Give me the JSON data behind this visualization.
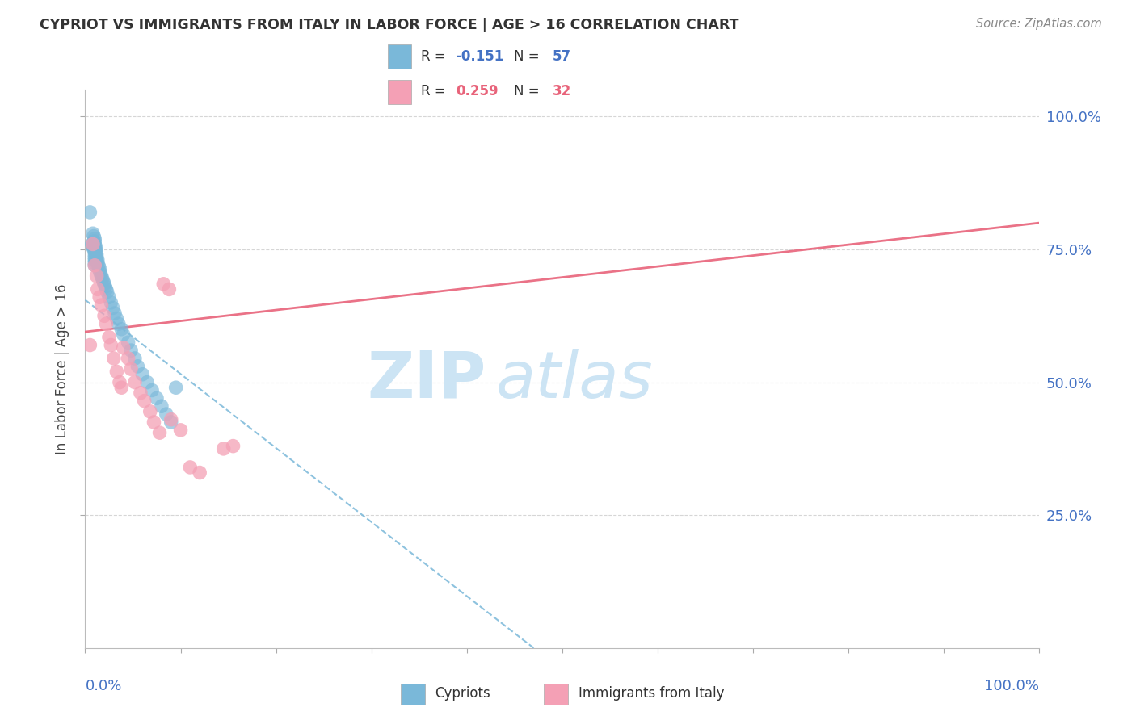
{
  "title": "CYPRIOT VS IMMIGRANTS FROM ITALY IN LABOR FORCE | AGE > 16 CORRELATION CHART",
  "source": "Source: ZipAtlas.com",
  "ylabel": "In Labor Force | Age > 16",
  "legend_r1": "R = -0.151",
  "legend_n1": "N = 57",
  "legend_r2": "R = 0.259",
  "legend_n2": "N = 32",
  "cypriot_color": "#7ab8d9",
  "italy_color": "#f4a0b5",
  "trend_cypriot_color": "#7ab8d9",
  "trend_italy_color": "#e8637a",
  "r1_color": "#4472c4",
  "r2_color": "#e8637a",
  "label_color": "#4472c4",
  "watermark_color": "#cce4f4",
  "background_color": "#ffffff",
  "grid_color": "#cccccc",
  "cypriot_x": [
    0.5,
    0.7,
    0.8,
    0.8,
    0.9,
    0.9,
    0.9,
    1.0,
    1.0,
    1.0,
    1.0,
    1.0,
    1.0,
    1.0,
    1.0,
    1.0,
    1.0,
    1.0,
    1.1,
    1.1,
    1.1,
    1.2,
    1.2,
    1.2,
    1.3,
    1.3,
    1.4,
    1.5,
    1.5,
    1.6,
    1.7,
    1.8,
    1.9,
    2.0,
    2.1,
    2.2,
    2.3,
    2.5,
    2.7,
    2.9,
    3.1,
    3.3,
    3.5,
    3.8,
    4.0,
    4.5,
    4.8,
    5.2,
    5.5,
    6.0,
    6.5,
    7.0,
    7.5,
    8.0,
    8.5,
    9.0,
    9.5
  ],
  "cypriot_y": [
    82.0,
    76.0,
    78.0,
    75.5,
    77.5,
    76.5,
    75.0,
    77.0,
    76.5,
    76.0,
    75.5,
    75.0,
    74.5,
    74.0,
    73.5,
    73.0,
    72.5,
    72.0,
    75.5,
    75.0,
    74.5,
    74.0,
    73.5,
    73.0,
    73.0,
    72.5,
    72.0,
    71.5,
    71.0,
    70.5,
    70.0,
    69.5,
    69.0,
    68.5,
    68.0,
    67.5,
    67.0,
    66.0,
    65.0,
    64.0,
    63.0,
    62.0,
    61.0,
    60.0,
    59.0,
    57.5,
    56.0,
    54.5,
    53.0,
    51.5,
    50.0,
    48.5,
    47.0,
    45.5,
    44.0,
    42.5,
    49.0
  ],
  "italy_x": [
    0.5,
    0.8,
    1.0,
    1.2,
    1.3,
    1.5,
    1.7,
    2.0,
    2.2,
    2.5,
    2.7,
    3.0,
    3.3,
    3.6,
    3.8,
    4.0,
    4.5,
    4.8,
    5.2,
    5.8,
    6.2,
    6.8,
    7.2,
    7.8,
    8.2,
    8.8,
    9.0,
    10.0,
    11.0,
    12.0,
    14.5,
    15.5
  ],
  "italy_y": [
    57.0,
    76.0,
    72.0,
    70.0,
    67.5,
    66.0,
    64.5,
    62.5,
    61.0,
    58.5,
    57.0,
    54.5,
    52.0,
    50.0,
    49.0,
    56.5,
    54.5,
    52.5,
    50.0,
    48.0,
    46.5,
    44.5,
    42.5,
    40.5,
    68.5,
    67.5,
    43.0,
    41.0,
    34.0,
    33.0,
    37.5,
    38.0
  ],
  "xlim": [
    0,
    100
  ],
  "ylim": [
    0,
    105
  ],
  "yticks": [
    25,
    50,
    75,
    100
  ],
  "ytick_labels": [
    "25.0%",
    "50.0%",
    "75.0%",
    "100.0%"
  ]
}
